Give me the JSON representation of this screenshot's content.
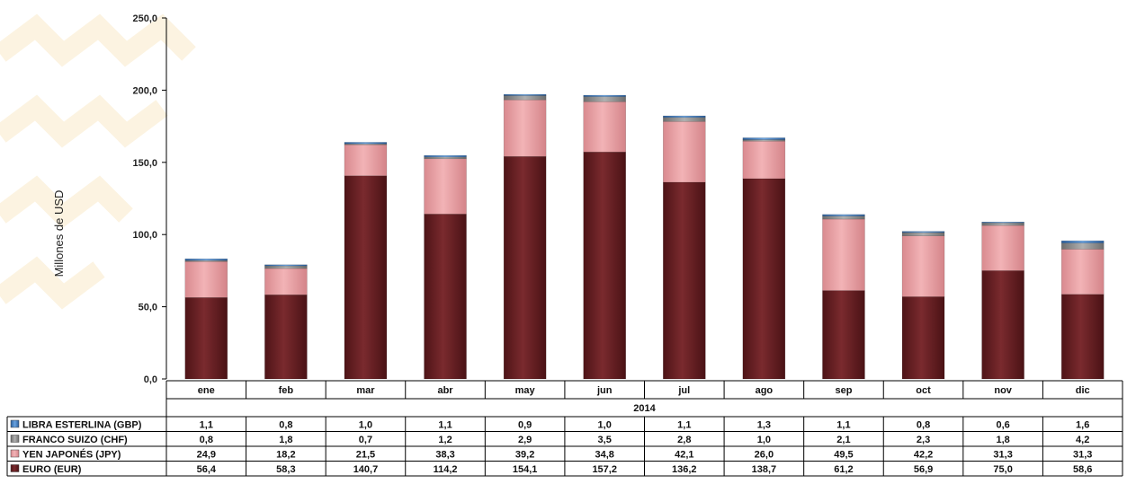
{
  "chart_data": {
    "type": "bar",
    "stacked": true,
    "ylabel": "Millones de USD",
    "xgroup_label": "2014",
    "ylim": [
      0,
      250
    ],
    "y_ticks": [
      "0,0",
      "50,0",
      "100,0",
      "150,0",
      "200,0",
      "250,0"
    ],
    "categories": [
      "ene",
      "feb",
      "mar",
      "abr",
      "may",
      "jun",
      "jul",
      "ago",
      "sep",
      "oct",
      "nov",
      "dic"
    ],
    "series": [
      {
        "name": "LIBRA ESTERLINA  (GBP)",
        "color": "#3f7fc9",
        "values": [
          1.1,
          0.8,
          1.0,
          1.1,
          0.9,
          1.0,
          1.1,
          1.3,
          1.1,
          0.8,
          0.6,
          1.6
        ],
        "labels": [
          "1,1",
          "0,8",
          "1,0",
          "1,1",
          "0,9",
          "1,0",
          "1,1",
          "1,3",
          "1,1",
          "0,8",
          "0,6",
          "1,6"
        ]
      },
      {
        "name": "FRANCO SUIZO  (CHF)",
        "color": "#8c8c8c",
        "values": [
          0.8,
          1.8,
          0.7,
          1.2,
          2.9,
          3.5,
          2.8,
          1.0,
          2.1,
          2.3,
          1.8,
          4.2
        ],
        "labels": [
          "0,8",
          "1,8",
          "0,7",
          "1,2",
          "2,9",
          "3,5",
          "2,8",
          "1,0",
          "2,1",
          "2,3",
          "1,8",
          "4,2"
        ]
      },
      {
        "name": "YEN JAPONÉS  (JPY)",
        "color": "#e8a0a4",
        "values": [
          24.9,
          18.2,
          21.5,
          38.3,
          39.2,
          34.8,
          42.1,
          26.0,
          49.5,
          42.2,
          31.3,
          31.3
        ],
        "labels": [
          "24,9",
          "18,2",
          "21,5",
          "38,3",
          "39,2",
          "34,8",
          "42,1",
          "26,0",
          "49,5",
          "42,2",
          "31,3",
          "31,3"
        ]
      },
      {
        "name": "EURO  (EUR)",
        "color": "#6b2226",
        "values": [
          56.4,
          58.3,
          140.7,
          114.2,
          154.1,
          157.2,
          136.2,
          138.7,
          61.2,
          56.9,
          75.0,
          58.6
        ],
        "labels": [
          "56,4",
          "58,3",
          "140,7",
          "114,2",
          "154,1",
          "157,2",
          "136,2",
          "138,7",
          "61,2",
          "56,9",
          "75,0",
          "58,6"
        ]
      }
    ],
    "stack_order_bottom_to_top": [
      "EURO  (EUR)",
      "YEN JAPONÉS  (JPY)",
      "FRANCO SUIZO  (CHF)",
      "LIBRA ESTERLINA  (GBP)"
    ],
    "legend": "table-below"
  }
}
